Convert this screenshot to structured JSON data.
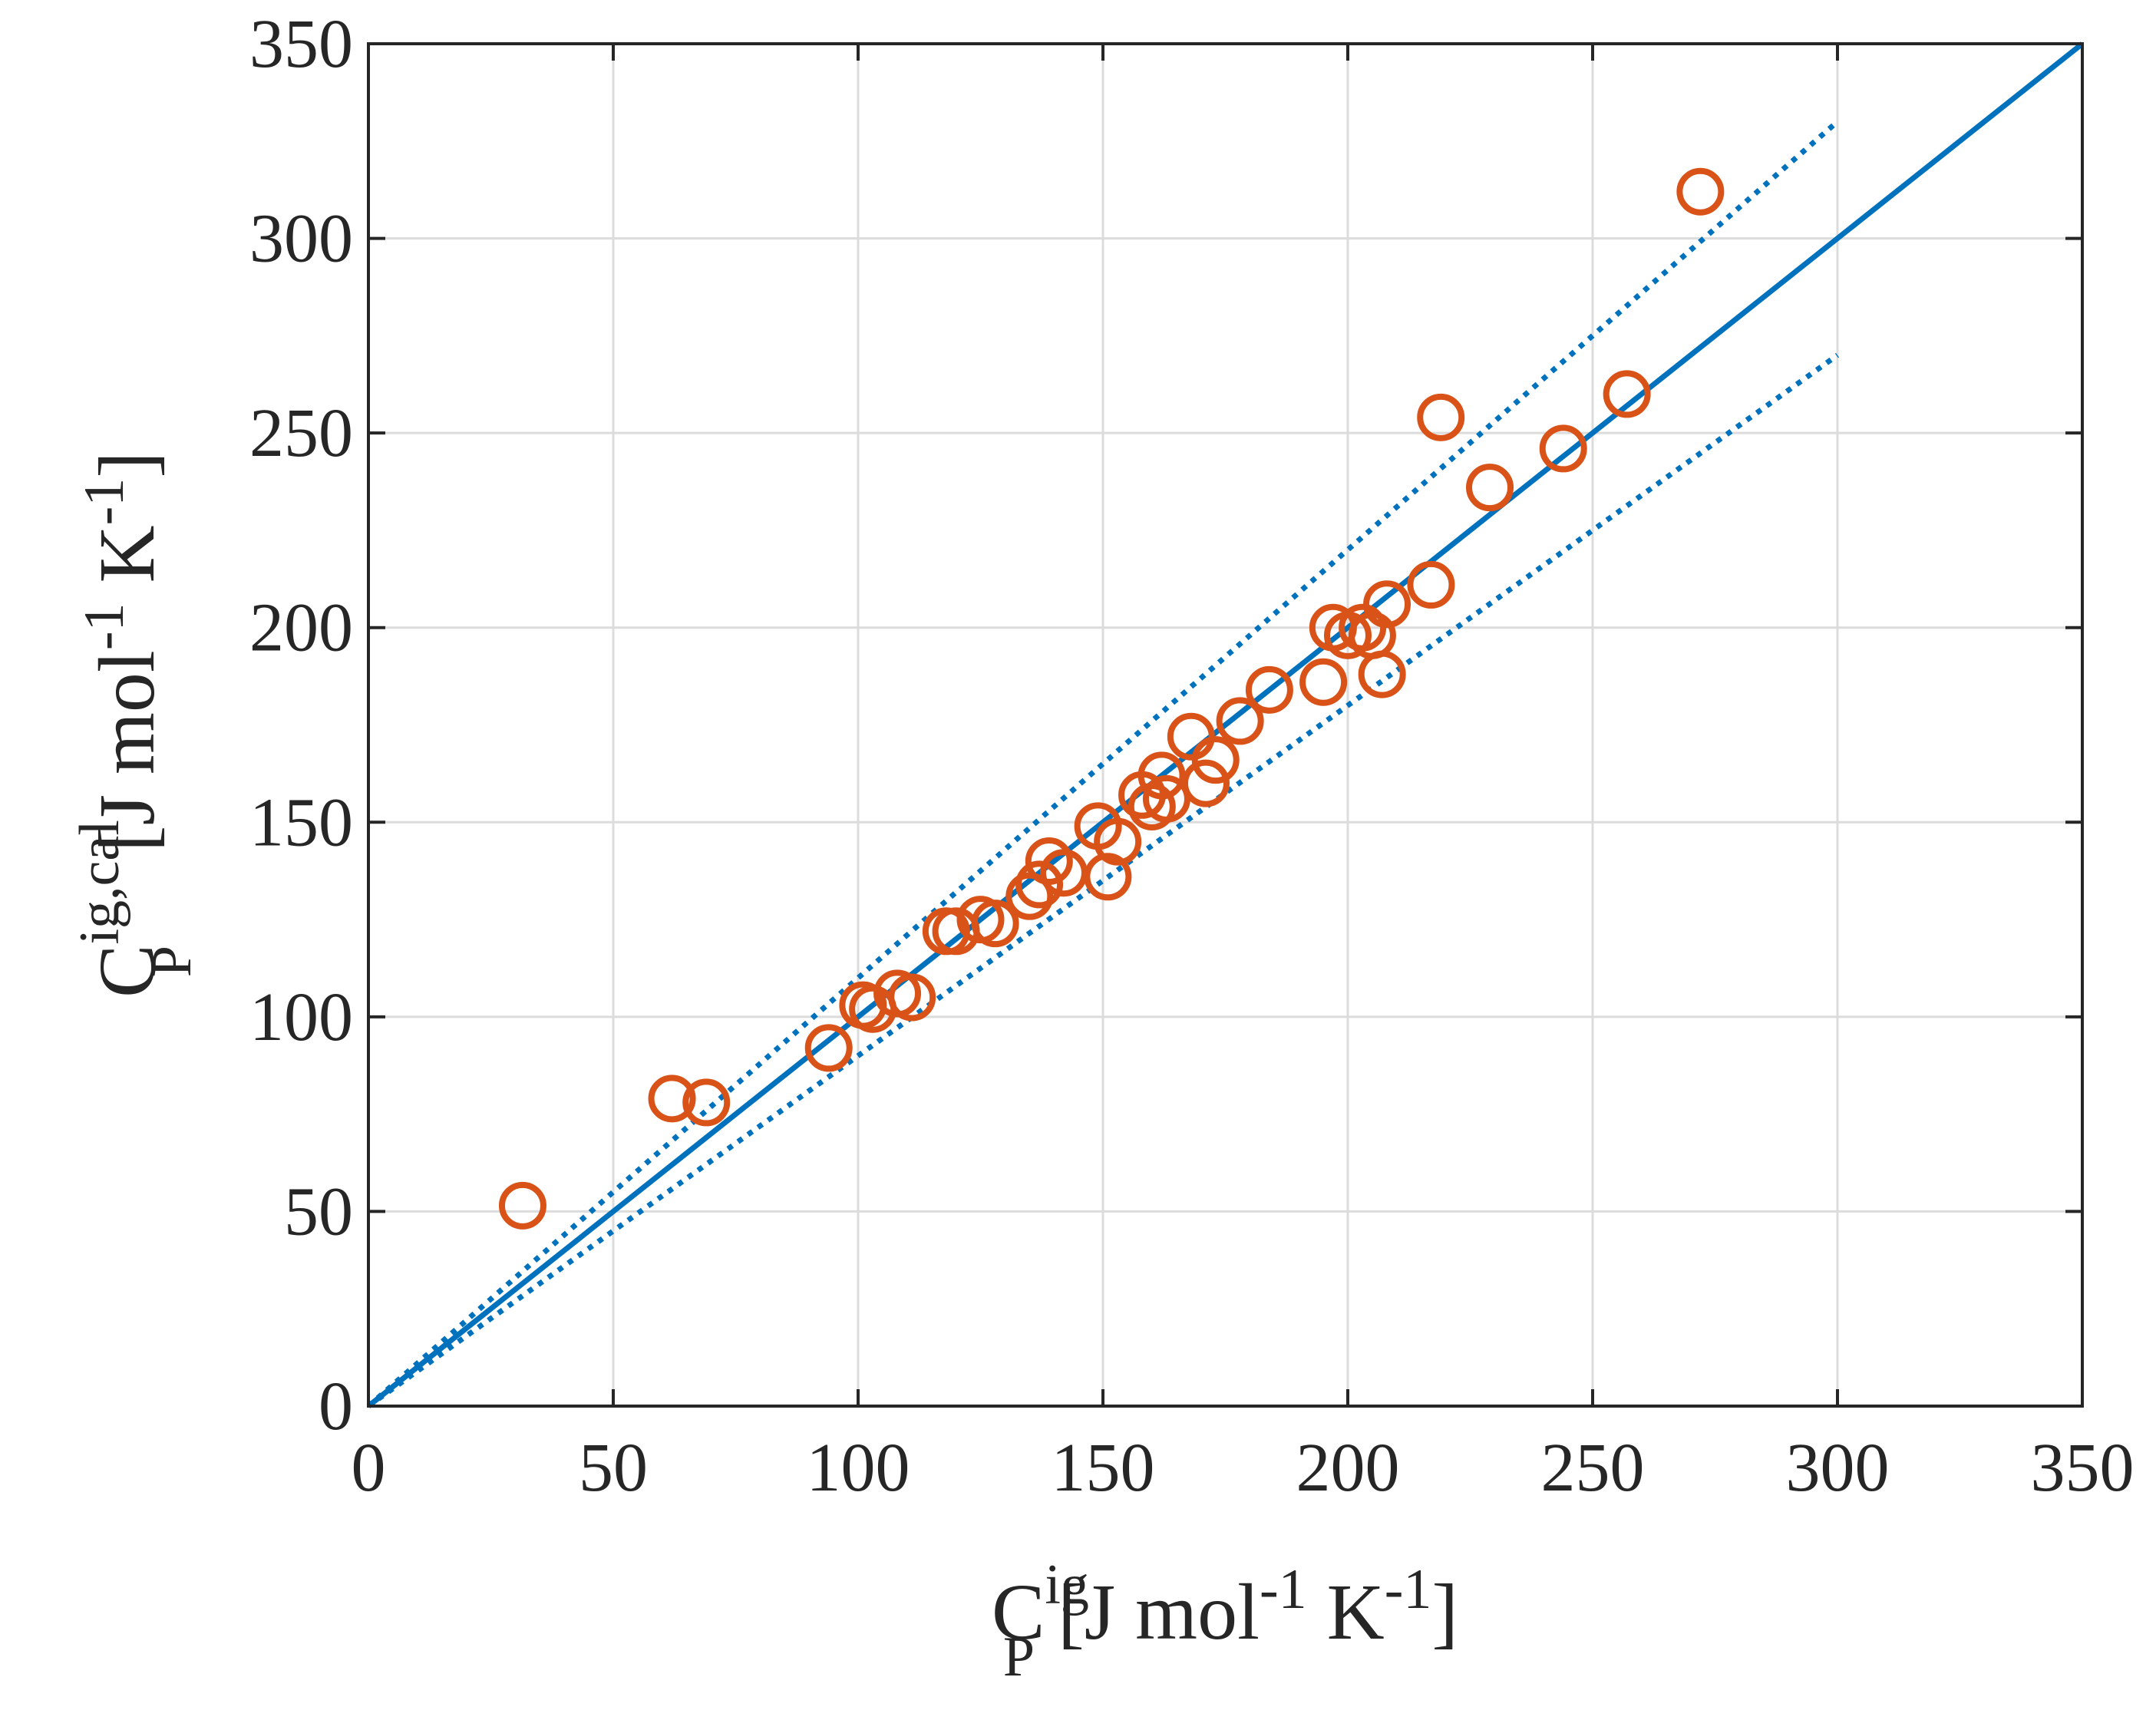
{
  "chart_data": {
    "type": "scatter",
    "title": "",
    "xlabel": {
      "main": "C",
      "sup": "ig",
      "sub": "P",
      "units": "[J mol",
      "unit_exp1": "-1",
      "units_mid": " K",
      "unit_exp2": "-1",
      "units_end": "]"
    },
    "ylabel": {
      "main": "C",
      "sup": "ig,cal",
      "sub": "P",
      "units": "[J mol",
      "unit_exp1": "-1",
      "units_mid": " K",
      "unit_exp2": "-1",
      "units_end": "]"
    },
    "xlim": [
      0,
      350
    ],
    "ylim": [
      0,
      350
    ],
    "xticks": [
      "0",
      "50",
      "100",
      "150",
      "200",
      "250",
      "300",
      "350"
    ],
    "yticks": [
      "0",
      "50",
      "100",
      "150",
      "200",
      "250",
      "300",
      "350"
    ],
    "grid": true,
    "colors": {
      "marker": "#D95319",
      "line": "#0072BD",
      "grid": "#dcdcdc",
      "axis": "#262626"
    },
    "lines": [
      {
        "name": "parity",
        "style": "solid",
        "x": [
          0,
          350
        ],
        "y": [
          0,
          350
        ]
      },
      {
        "name": "upper bound (+10%)",
        "style": "dotted",
        "x": [
          0,
          300
        ],
        "y": [
          0,
          330
        ]
      },
      {
        "name": "lower bound (-10%)",
        "style": "dotted",
        "x": [
          0,
          300
        ],
        "y": [
          0,
          270
        ]
      }
    ],
    "series": [
      {
        "name": "data",
        "marker": "circle",
        "points": [
          [
            31.5,
            51.5
          ],
          [
            62,
            79
          ],
          [
            69,
            78
          ],
          [
            94,
            92
          ],
          [
            101,
            103
          ],
          [
            103,
            102
          ],
          [
            108,
            106
          ],
          [
            111,
            105
          ],
          [
            118,
            122
          ],
          [
            120,
            122
          ],
          [
            125,
            125
          ],
          [
            128,
            124
          ],
          [
            135,
            131
          ],
          [
            137,
            134
          ],
          [
            139,
            140
          ],
          [
            142,
            137
          ],
          [
            149,
            149
          ],
          [
            151,
            136
          ],
          [
            153,
            145
          ],
          [
            158,
            157
          ],
          [
            160,
            154
          ],
          [
            162,
            162
          ],
          [
            163,
            156
          ],
          [
            168,
            172
          ],
          [
            171,
            160
          ],
          [
            173,
            166
          ],
          [
            178,
            176
          ],
          [
            184,
            184
          ],
          [
            195,
            186
          ],
          [
            197,
            200
          ],
          [
            200,
            198
          ],
          [
            203,
            200
          ],
          [
            205,
            198
          ],
          [
            207,
            188
          ],
          [
            208,
            206
          ],
          [
            217,
            211
          ],
          [
            219,
            254
          ],
          [
            229,
            236
          ],
          [
            244,
            246
          ],
          [
            257,
            260
          ],
          [
            272,
            312
          ]
        ]
      }
    ]
  }
}
